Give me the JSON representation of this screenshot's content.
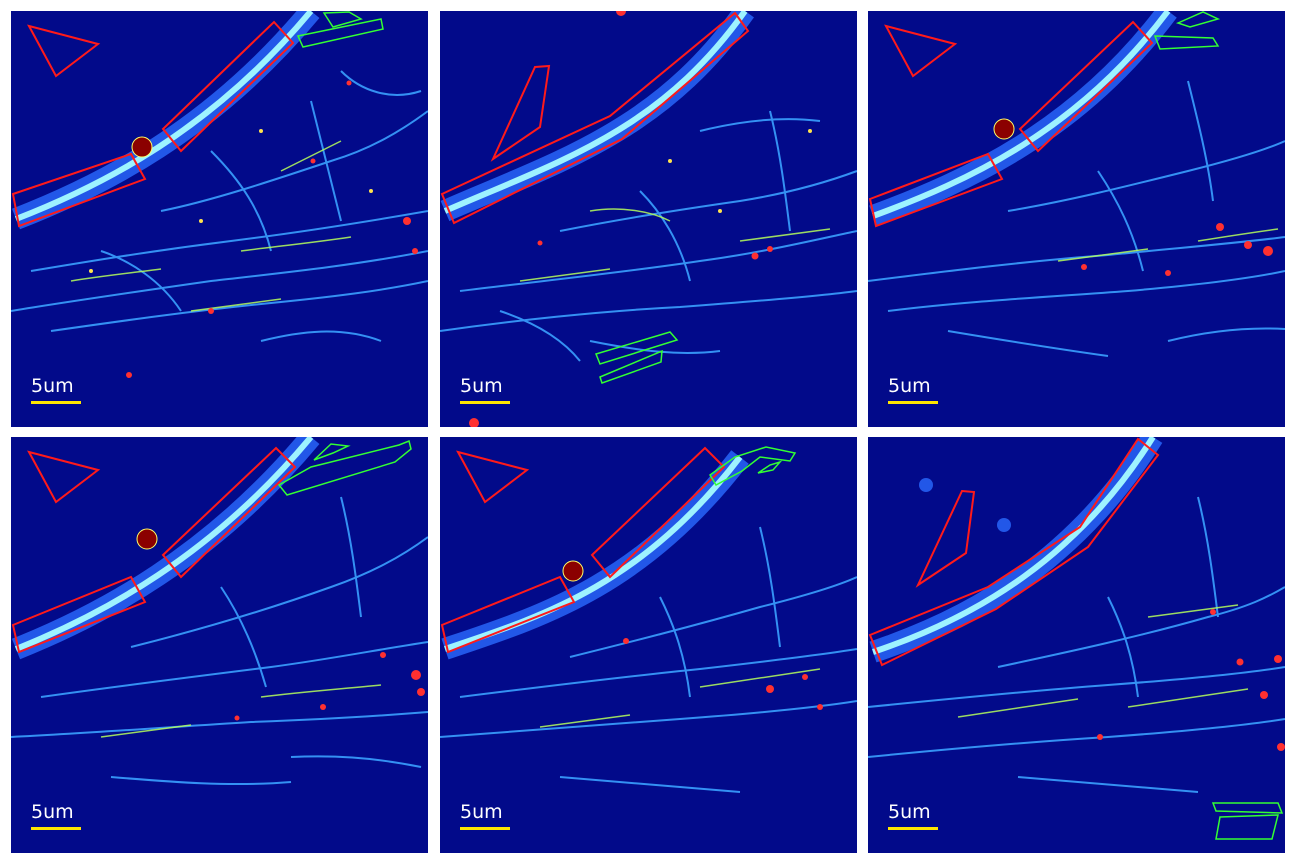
{
  "figure": {
    "panels": [
      {
        "id": 1,
        "scale_label": "5um"
      },
      {
        "id": 2,
        "scale_label": "5um"
      },
      {
        "id": 3,
        "scale_label": "5um"
      },
      {
        "id": 4,
        "scale_label": "5um"
      },
      {
        "id": 5,
        "scale_label": "5um"
      },
      {
        "id": 6,
        "scale_label": "5um"
      }
    ],
    "colors": {
      "background": "#020a8a",
      "roi_background": "#ff1a1a",
      "roi_signal": "#33ff33",
      "scale_bar": "#ffe600",
      "marker": "#8b0000"
    }
  }
}
